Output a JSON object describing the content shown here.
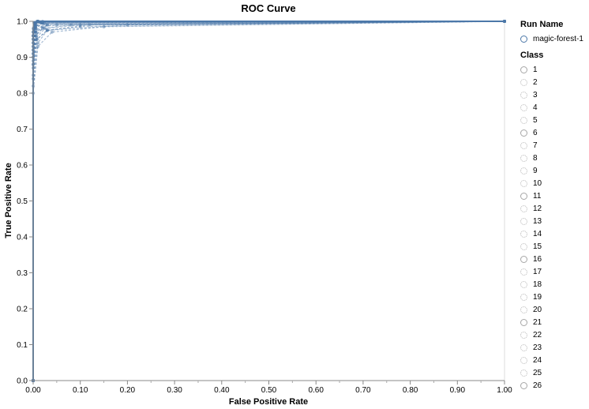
{
  "chart_data": {
    "type": "line",
    "title": "ROC Curve",
    "xlabel": "False Positive Rate",
    "ylabel": "True Positive Rate",
    "xlim": [
      0,
      1
    ],
    "ylim": [
      0,
      1
    ],
    "x_ticks": [
      "0.00",
      "0.10",
      "0.20",
      "0.30",
      "0.40",
      "0.50",
      "0.60",
      "0.70",
      "0.80",
      "0.90",
      "1.00"
    ],
    "y_ticks": [
      "0.0",
      "0.1",
      "0.2",
      "0.3",
      "0.4",
      "0.5",
      "0.6",
      "0.7",
      "0.8",
      "0.9",
      "1.0"
    ],
    "grid": false,
    "legend_placement": "right",
    "color": "#4c78a8",
    "series": [
      {
        "name": "magic-forest-1 / 1",
        "x": [
          0,
          0,
          0.005,
          0.02,
          1.0
        ],
        "y": [
          0,
          0.96,
          0.995,
          1.0,
          1.0
        ]
      },
      {
        "name": "magic-forest-1 / 2",
        "x": [
          0,
          0,
          0.005,
          0.02,
          0.05,
          1.0
        ],
        "y": [
          0,
          0.9,
          0.97,
          0.985,
          0.99,
          1.0
        ]
      },
      {
        "name": "magic-forest-1 / 3",
        "x": [
          0,
          0,
          0.008,
          0.03,
          0.1,
          1.0
        ],
        "y": [
          0,
          0.85,
          0.95,
          0.975,
          0.985,
          1.0
        ]
      },
      {
        "name": "magic-forest-1 / 4",
        "x": [
          0,
          0,
          0.01,
          0.04,
          0.15,
          1.0
        ],
        "y": [
          0,
          0.8,
          0.93,
          0.97,
          0.985,
          1.0
        ]
      },
      {
        "name": "magic-forest-1 / 5",
        "x": [
          0,
          0,
          0.004,
          0.015,
          1.0
        ],
        "y": [
          0,
          0.93,
          0.985,
          0.998,
          1.0
        ]
      },
      {
        "name": "magic-forest-1 / 6",
        "x": [
          0,
          0,
          0.003,
          0.01,
          1.0
        ],
        "y": [
          0,
          0.97,
          0.995,
          1.0,
          1.0
        ]
      },
      {
        "name": "magic-forest-1 / 7",
        "x": [
          0,
          0,
          0.006,
          0.02,
          0.08,
          1.0
        ],
        "y": [
          0,
          0.88,
          0.96,
          0.98,
          0.99,
          1.0
        ]
      },
      {
        "name": "magic-forest-1 / 8",
        "x": [
          0,
          0,
          0.005,
          0.015,
          1.0
        ],
        "y": [
          0,
          0.95,
          0.99,
          0.998,
          1.0
        ]
      },
      {
        "name": "magic-forest-1 / 9",
        "x": [
          0,
          0,
          0.01,
          0.03,
          0.2,
          1.0
        ],
        "y": [
          0,
          0.82,
          0.94,
          0.975,
          0.99,
          1.0
        ]
      },
      {
        "name": "magic-forest-1 / 10",
        "x": [
          0,
          0,
          0.004,
          0.02,
          1.0
        ],
        "y": [
          0,
          0.92,
          0.985,
          0.995,
          1.0
        ]
      },
      {
        "name": "magic-forest-1 / 11",
        "x": [
          0,
          0,
          0.002,
          0.01,
          1.0
        ],
        "y": [
          0,
          0.98,
          0.997,
          1.0,
          1.0
        ]
      },
      {
        "name": "magic-forest-1 / 12",
        "x": [
          0,
          0,
          0.007,
          0.025,
          0.1,
          1.0
        ],
        "y": [
          0,
          0.87,
          0.955,
          0.98,
          0.99,
          1.0
        ]
      },
      {
        "name": "magic-forest-1 / 13",
        "x": [
          0,
          0,
          0.005,
          0.02,
          1.0
        ],
        "y": [
          0,
          0.91,
          0.98,
          0.995,
          1.0
        ]
      },
      {
        "name": "magic-forest-1 / 14",
        "x": [
          0,
          0,
          0.004,
          0.015,
          1.0
        ],
        "y": [
          0,
          0.94,
          0.99,
          0.998,
          1.0
        ]
      },
      {
        "name": "magic-forest-1 / 15",
        "x": [
          0,
          0,
          0.006,
          0.03,
          1.0
        ],
        "y": [
          0,
          0.89,
          0.97,
          0.99,
          1.0
        ]
      },
      {
        "name": "magic-forest-1 / 16",
        "x": [
          0,
          0,
          0.003,
          0.01,
          1.0
        ],
        "y": [
          0,
          0.96,
          0.995,
          1.0,
          1.0
        ]
      },
      {
        "name": "magic-forest-1 / 17",
        "x": [
          0,
          0,
          0.008,
          0.03,
          0.12,
          1.0
        ],
        "y": [
          0,
          0.84,
          0.95,
          0.975,
          0.99,
          1.0
        ]
      },
      {
        "name": "magic-forest-1 / 18",
        "x": [
          0,
          0,
          0.005,
          0.02,
          1.0
        ],
        "y": [
          0,
          0.93,
          0.985,
          0.996,
          1.0
        ]
      },
      {
        "name": "magic-forest-1 / 19",
        "x": [
          0,
          0,
          0.006,
          0.025,
          1.0
        ],
        "y": [
          0,
          0.9,
          0.975,
          0.993,
          1.0
        ]
      },
      {
        "name": "magic-forest-1 / 20",
        "x": [
          0,
          0,
          0.004,
          0.012,
          1.0
        ],
        "y": [
          0,
          0.95,
          0.99,
          0.999,
          1.0
        ]
      },
      {
        "name": "magic-forest-1 / 21",
        "x": [
          0,
          0,
          0.002,
          0.008,
          1.0
        ],
        "y": [
          0,
          0.97,
          0.996,
          1.0,
          1.0
        ]
      },
      {
        "name": "magic-forest-1 / 22",
        "x": [
          0,
          0,
          0.007,
          0.03,
          1.0
        ],
        "y": [
          0,
          0.88,
          0.965,
          0.99,
          1.0
        ]
      },
      {
        "name": "magic-forest-1 / 23",
        "x": [
          0,
          0,
          0.005,
          0.018,
          1.0
        ],
        "y": [
          0,
          0.92,
          0.985,
          0.997,
          1.0
        ]
      },
      {
        "name": "magic-forest-1 / 24",
        "x": [
          0,
          0,
          0.006,
          0.02,
          1.0
        ],
        "y": [
          0,
          0.91,
          0.98,
          0.995,
          1.0
        ]
      },
      {
        "name": "magic-forest-1 / 25",
        "x": [
          0,
          0,
          0.004,
          0.015,
          1.0
        ],
        "y": [
          0,
          0.94,
          0.99,
          0.998,
          1.0
        ]
      },
      {
        "name": "magic-forest-1 / 26",
        "x": [
          0,
          0,
          0.003,
          0.01,
          1.0
        ],
        "y": [
          0,
          0.96,
          0.994,
          1.0,
          1.0
        ]
      }
    ]
  },
  "legend": {
    "run_title": "Run Name",
    "runs": [
      "magic-forest-1"
    ],
    "class_title": "Class",
    "classes": [
      {
        "label": "1",
        "dashed": false
      },
      {
        "label": "2",
        "dashed": true
      },
      {
        "label": "3",
        "dashed": true
      },
      {
        "label": "4",
        "dashed": true
      },
      {
        "label": "5",
        "dashed": true
      },
      {
        "label": "6",
        "dashed": false
      },
      {
        "label": "7",
        "dashed": true
      },
      {
        "label": "8",
        "dashed": true
      },
      {
        "label": "9",
        "dashed": true
      },
      {
        "label": "10",
        "dashed": true
      },
      {
        "label": "11",
        "dashed": false
      },
      {
        "label": "12",
        "dashed": true
      },
      {
        "label": "13",
        "dashed": true
      },
      {
        "label": "14",
        "dashed": true
      },
      {
        "label": "15",
        "dashed": true
      },
      {
        "label": "16",
        "dashed": false
      },
      {
        "label": "17",
        "dashed": true
      },
      {
        "label": "18",
        "dashed": true
      },
      {
        "label": "19",
        "dashed": true
      },
      {
        "label": "20",
        "dashed": true
      },
      {
        "label": "21",
        "dashed": false
      },
      {
        "label": "22",
        "dashed": true
      },
      {
        "label": "23",
        "dashed": true
      },
      {
        "label": "24",
        "dashed": true
      },
      {
        "label": "25",
        "dashed": true
      },
      {
        "label": "26",
        "dashed": false
      }
    ]
  }
}
